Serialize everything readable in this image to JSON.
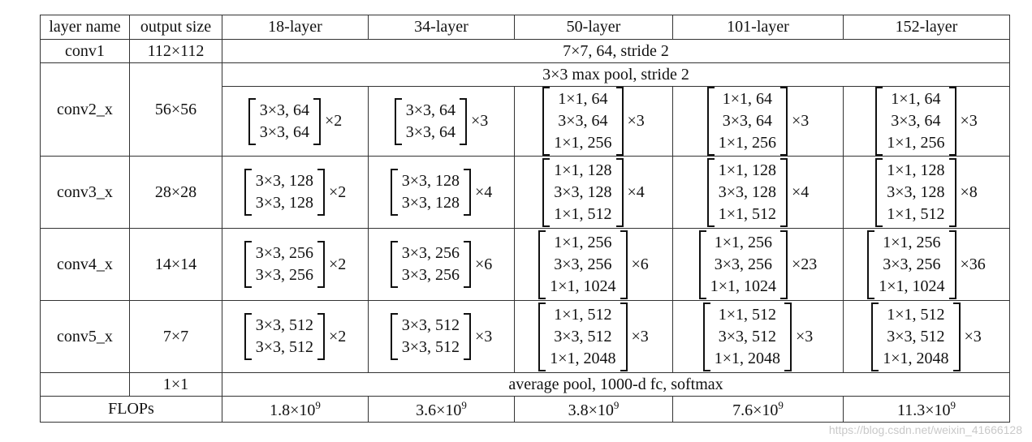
{
  "headers": [
    "layer name",
    "output size",
    "18-layer",
    "34-layer",
    "50-layer",
    "101-layer",
    "152-layer"
  ],
  "conv1": {
    "name": "conv1",
    "size": "112×112",
    "config": "7×7, 64, stride 2"
  },
  "pool": {
    "config": "3×3 max pool, stride 2"
  },
  "stages": [
    {
      "name": "conv2_x",
      "size": "56×56",
      "blocks": [
        {
          "lines": [
            "3×3, 64",
            "3×3, 64"
          ],
          "mult": "×2"
        },
        {
          "lines": [
            "3×3, 64",
            "3×3, 64"
          ],
          "mult": "×3"
        },
        {
          "lines": [
            "1×1, 64",
            "3×3, 64",
            "1×1, 256"
          ],
          "mult": "×3"
        },
        {
          "lines": [
            "1×1, 64",
            "3×3, 64",
            "1×1, 256"
          ],
          "mult": "×3"
        },
        {
          "lines": [
            "1×1, 64",
            "3×3, 64",
            "1×1, 256"
          ],
          "mult": "×3"
        }
      ]
    },
    {
      "name": "conv3_x",
      "size": "28×28",
      "blocks": [
        {
          "lines": [
            "3×3, 128",
            "3×3, 128"
          ],
          "mult": "×2"
        },
        {
          "lines": [
            "3×3, 128",
            "3×3, 128"
          ],
          "mult": "×4"
        },
        {
          "lines": [
            "1×1, 128",
            "3×3, 128",
            "1×1, 512"
          ],
          "mult": "×4"
        },
        {
          "lines": [
            "1×1, 128",
            "3×3, 128",
            "1×1, 512"
          ],
          "mult": "×4"
        },
        {
          "lines": [
            "1×1, 128",
            "3×3, 128",
            "1×1, 512"
          ],
          "mult": "×8"
        }
      ]
    },
    {
      "name": "conv4_x",
      "size": "14×14",
      "blocks": [
        {
          "lines": [
            "3×3, 256",
            "3×3, 256"
          ],
          "mult": "×2"
        },
        {
          "lines": [
            "3×3, 256",
            "3×3, 256"
          ],
          "mult": "×6"
        },
        {
          "lines": [
            "1×1, 256",
            "3×3, 256",
            "1×1, 1024"
          ],
          "mult": "×6"
        },
        {
          "lines": [
            "1×1, 256",
            "3×3, 256",
            "1×1, 1024"
          ],
          "mult": "×23"
        },
        {
          "lines": [
            "1×1, 256",
            "3×3, 256",
            "1×1, 1024"
          ],
          "mult": "×36"
        }
      ]
    },
    {
      "name": "conv5_x",
      "size": "7×7",
      "blocks": [
        {
          "lines": [
            "3×3, 512",
            "3×3, 512"
          ],
          "mult": "×2"
        },
        {
          "lines": [
            "3×3, 512",
            "3×3, 512"
          ],
          "mult": "×3"
        },
        {
          "lines": [
            "1×1, 512",
            "3×3, 512",
            "1×1, 2048"
          ],
          "mult": "×3"
        },
        {
          "lines": [
            "1×1, 512",
            "3×3, 512",
            "1×1, 2048"
          ],
          "mult": "×3"
        },
        {
          "lines": [
            "1×1, 512",
            "3×3, 512",
            "1×1, 2048"
          ],
          "mult": "×3"
        }
      ]
    }
  ],
  "final": {
    "size": "1×1",
    "config": "average pool, 1000-d fc, softmax"
  },
  "flops": {
    "label": "FLOPs",
    "values": [
      {
        "mant": "1.8×10",
        "exp": "9"
      },
      {
        "mant": "3.6×10",
        "exp": "9"
      },
      {
        "mant": "3.8×10",
        "exp": "9"
      },
      {
        "mant": "7.6×10",
        "exp": "9"
      },
      {
        "mant": "11.3×10",
        "exp": "9"
      }
    ]
  },
  "watermark": "https://blog.csdn.net/weixin_41666128"
}
